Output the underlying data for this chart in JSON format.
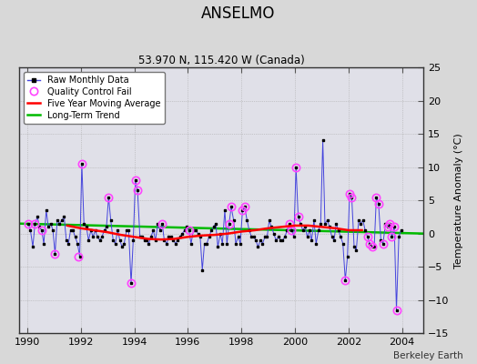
{
  "title": "ANSELMO",
  "subtitle": "53.970 N, 115.420 W (Canada)",
  "ylabel": "Temperature Anomaly (°C)",
  "watermark": "Berkeley Earth",
  "fig_bg_color": "#d8d8d8",
  "plot_bg_color": "#e0e0e8",
  "ylim": [
    -15,
    25
  ],
  "yticks": [
    -15,
    -10,
    -5,
    0,
    5,
    10,
    15,
    20,
    25
  ],
  "xlim": [
    1989.7,
    2004.8
  ],
  "xticks": [
    1990,
    1992,
    1994,
    1996,
    1998,
    2000,
    2002,
    2004
  ],
  "raw_line_color": "#4444dd",
  "raw_marker_color": "#000000",
  "qc_fail_color": "#ff44ff",
  "moving_avg_color": "#ff0000",
  "trend_color": "#00bb00",
  "raw_x": [
    1990.04,
    1990.12,
    1990.21,
    1990.29,
    1990.38,
    1990.46,
    1990.54,
    1990.62,
    1990.71,
    1990.79,
    1990.88,
    1990.96,
    1991.04,
    1991.12,
    1991.21,
    1991.29,
    1991.38,
    1991.46,
    1991.54,
    1991.62,
    1991.71,
    1991.79,
    1991.88,
    1991.96,
    1992.04,
    1992.12,
    1992.21,
    1992.29,
    1992.38,
    1992.46,
    1992.54,
    1992.62,
    1992.71,
    1992.79,
    1992.88,
    1992.96,
    1993.04,
    1993.12,
    1993.21,
    1993.29,
    1993.38,
    1993.46,
    1993.54,
    1993.62,
    1993.71,
    1993.79,
    1993.88,
    1993.96,
    1994.04,
    1994.12,
    1994.21,
    1994.29,
    1994.38,
    1994.46,
    1994.54,
    1994.62,
    1994.71,
    1994.79,
    1994.88,
    1994.96,
    1995.04,
    1995.12,
    1995.21,
    1995.29,
    1995.38,
    1995.46,
    1995.54,
    1995.62,
    1995.71,
    1995.79,
    1995.88,
    1995.96,
    1996.04,
    1996.12,
    1996.21,
    1996.29,
    1996.38,
    1996.46,
    1996.54,
    1996.62,
    1996.71,
    1996.79,
    1996.88,
    1996.96,
    1997.04,
    1997.12,
    1997.21,
    1997.29,
    1997.38,
    1997.46,
    1997.54,
    1997.62,
    1997.71,
    1997.79,
    1997.88,
    1997.96,
    1998.04,
    1998.12,
    1998.21,
    1998.29,
    1998.38,
    1998.46,
    1998.54,
    1998.62,
    1998.71,
    1998.79,
    1998.88,
    1998.96,
    1999.04,
    1999.12,
    1999.21,
    1999.29,
    1999.38,
    1999.46,
    1999.54,
    1999.62,
    1999.71,
    1999.79,
    1999.88,
    1999.96,
    2000.04,
    2000.12,
    2000.21,
    2000.29,
    2000.38,
    2000.46,
    2000.54,
    2000.62,
    2000.71,
    2000.79,
    2000.88,
    2000.96,
    2001.04,
    2001.12,
    2001.21,
    2001.29,
    2001.38,
    2001.46,
    2001.54,
    2001.62,
    2001.71,
    2001.79,
    2001.88,
    2001.96,
    2002.04,
    2002.12,
    2002.21,
    2002.29,
    2002.38,
    2002.46,
    2002.54,
    2002.62,
    2002.71,
    2002.79,
    2002.88,
    2002.96,
    2003.04,
    2003.12,
    2003.21,
    2003.29,
    2003.38,
    2003.46,
    2003.54,
    2003.62,
    2003.71,
    2003.79,
    2003.88,
    2003.96
  ],
  "raw_y": [
    1.5,
    0.5,
    -2.0,
    1.5,
    2.5,
    1.0,
    0.5,
    -1.5,
    3.5,
    1.0,
    1.5,
    0.5,
    -3.0,
    2.0,
    1.5,
    2.0,
    2.5,
    -1.0,
    -1.5,
    0.5,
    0.5,
    -0.5,
    -1.5,
    -3.5,
    10.5,
    1.5,
    1.0,
    -1.0,
    0.5,
    -0.5,
    0.5,
    -0.5,
    -1.0,
    -0.5,
    0.5,
    1.0,
    5.5,
    2.0,
    -1.0,
    -1.5,
    0.5,
    -1.0,
    -2.0,
    -1.5,
    0.5,
    0.5,
    -7.5,
    -1.0,
    8.0,
    6.5,
    -0.5,
    -0.5,
    -1.0,
    -1.0,
    -1.5,
    -0.5,
    0.5,
    -1.0,
    1.5,
    0.5,
    1.5,
    -1.0,
    -1.5,
    -0.5,
    -0.5,
    -1.0,
    -1.5,
    -1.0,
    -0.5,
    0.0,
    0.5,
    1.0,
    0.5,
    -1.5,
    0.5,
    0.5,
    0.0,
    -0.5,
    -5.5,
    -1.5,
    -1.5,
    -0.5,
    0.5,
    1.0,
    1.5,
    -2.0,
    0.0,
    -1.5,
    3.5,
    -1.5,
    1.5,
    4.0,
    2.0,
    -1.5,
    -0.5,
    -1.5,
    3.5,
    4.0,
    2.0,
    0.5,
    -0.5,
    -0.5,
    -1.0,
    -2.0,
    -1.0,
    -1.5,
    -0.5,
    -0.5,
    2.0,
    1.0,
    0.0,
    -1.0,
    -0.5,
    -1.0,
    -1.0,
    -0.5,
    0.5,
    1.5,
    0.5,
    -0.5,
    10.0,
    2.5,
    1.5,
    0.5,
    1.0,
    -0.5,
    0.5,
    -1.0,
    2.0,
    -1.5,
    0.5,
    1.5,
    14.0,
    1.5,
    2.0,
    1.0,
    -0.5,
    -1.0,
    1.5,
    0.5,
    -0.5,
    -1.5,
    -7.0,
    -3.5,
    6.0,
    5.5,
    -2.0,
    -2.5,
    2.0,
    1.5,
    2.0,
    0.5,
    -0.5,
    -1.5,
    -2.0,
    -2.0,
    5.5,
    4.5,
    -1.0,
    -1.5,
    1.5,
    1.0,
    1.5,
    -0.5,
    1.0,
    -11.5,
    -0.5,
    0.5
  ],
  "qc_x": [
    1990.04,
    1990.29,
    1990.54,
    1991.04,
    1991.92,
    1992.04,
    1993.04,
    1993.88,
    1994.04,
    1994.12,
    1995.04,
    1996.04,
    1997.54,
    1997.62,
    1998.04,
    1998.12,
    1999.79,
    1999.88,
    2000.04,
    2000.12,
    2001.88,
    2002.04,
    2002.12,
    2002.71,
    2002.79,
    2002.88,
    2003.04,
    2003.12,
    2003.29,
    2003.46,
    2003.54,
    2003.62,
    2003.71,
    2003.79
  ],
  "qc_y": [
    1.5,
    1.5,
    0.5,
    -3.0,
    -3.5,
    10.5,
    5.5,
    -7.5,
    8.0,
    6.5,
    1.5,
    0.5,
    1.5,
    4.0,
    3.5,
    4.0,
    1.5,
    0.5,
    10.0,
    2.5,
    -7.0,
    6.0,
    5.5,
    -0.5,
    -1.5,
    -2.0,
    5.5,
    4.5,
    -1.5,
    1.0,
    1.5,
    -0.5,
    1.0,
    -11.5
  ],
  "moving_avg_x": [
    1991.5,
    1992.0,
    1992.5,
    1993.0,
    1993.5,
    1994.0,
    1994.5,
    1995.0,
    1995.5,
    1996.0,
    1996.5,
    1997.0,
    1997.5,
    1998.0,
    1998.5,
    1999.0,
    1999.5,
    2000.0,
    2000.5,
    2001.0,
    2001.5,
    2002.0,
    2002.5
  ],
  "moving_avg_y": [
    1.2,
    0.8,
    0.5,
    0.2,
    -0.2,
    -0.5,
    -0.8,
    -0.9,
    -0.8,
    -0.5,
    -0.3,
    -0.2,
    0.0,
    0.3,
    0.5,
    0.8,
    1.0,
    1.2,
    1.2,
    1.0,
    0.8,
    0.5,
    0.5
  ],
  "trend_x": [
    1989.7,
    2004.8
  ],
  "trend_y": [
    1.5,
    0.0
  ]
}
